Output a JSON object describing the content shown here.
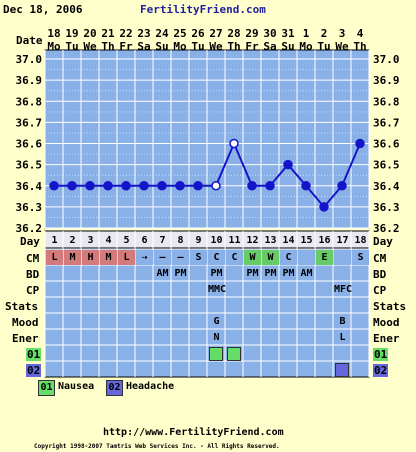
{
  "header": {
    "date": "Dec 18, 2006",
    "site": "FertilityFriend.com"
  },
  "chart_data": {
    "type": "line",
    "title": "",
    "dates": [
      "18",
      "19",
      "20",
      "21",
      "22",
      "23",
      "24",
      "25",
      "26",
      "27",
      "28",
      "29",
      "30",
      "31",
      "1",
      "2",
      "3",
      "4"
    ],
    "weekdays": [
      "Mo",
      "Tu",
      "We",
      "Th",
      "Fr",
      "Sa",
      "Su",
      "Mo",
      "Tu",
      "We",
      "Th",
      "Fr",
      "Sa",
      "Su",
      "Mo",
      "Tu",
      "We",
      "Th"
    ],
    "cycle_days": [
      "1",
      "2",
      "3",
      "4",
      "5",
      "6",
      "7",
      "8",
      "9",
      "10",
      "11",
      "12",
      "13",
      "14",
      "15",
      "16",
      "17",
      "18"
    ],
    "y_ticks": [
      "37.0",
      "36.9",
      "36.8",
      "36.7",
      "36.6",
      "36.5",
      "36.4",
      "36.3",
      "36.2"
    ],
    "ylim": [
      36.2,
      37.0
    ],
    "temperatures": [
      36.4,
      36.4,
      36.4,
      36.4,
      36.4,
      36.4,
      36.4,
      36.4,
      36.4,
      36.4,
      36.6,
      36.4,
      36.4,
      36.5,
      36.4,
      36.3,
      36.4,
      36.6
    ],
    "open_points": [
      10,
      11
    ],
    "grid": true,
    "line_color": "#1414c8"
  },
  "rows": {
    "labels": {
      "date": "Date",
      "day": "Day",
      "cm": "CM",
      "bd": "BD",
      "cp": "CP",
      "stats": "Stats",
      "mood": "Mood",
      "ener": "Ener",
      "s1": "01",
      "s2": "02"
    },
    "cm": [
      "L",
      "M",
      "H",
      "M",
      "L",
      "⇢",
      "–",
      "–",
      "S",
      "C",
      "C",
      "W",
      "W",
      "C",
      "",
      "E",
      "",
      "S"
    ],
    "cm_colors": [
      "#d47a7a",
      "#d47a7a",
      "#d47a7a",
      "#d47a7a",
      "#d47a7a",
      "#8ab0e8",
      "#8ab0e8",
      "#8ab0e8",
      "#8ab0e8",
      "#8ab0e8",
      "#8ab0e8",
      "#66cc66",
      "#66cc66",
      "#8ab0e8",
      "#8ab0e8",
      "#66cc66",
      "#8ab0e8",
      "#8ab0e8"
    ],
    "bd": [
      "",
      "",
      "",
      "",
      "",
      "",
      "AM",
      "PM",
      "",
      "PM",
      "",
      "PM",
      "PM",
      "PM",
      "AM",
      "",
      "",
      ""
    ],
    "cp": [
      "",
      "",
      "",
      "",
      "",
      "",
      "",
      "",
      "",
      "MMC",
      "",
      "",
      "",
      "",
      "",
      "",
      "MFC",
      ""
    ],
    "stats": [
      "",
      "",
      "",
      "",
      "",
      "",
      "",
      "",
      "",
      "",
      "",
      "",
      "",
      "",
      "",
      "",
      "",
      ""
    ],
    "mood": [
      "",
      "",
      "",
      "",
      "",
      "",
      "",
      "",
      "",
      "G",
      "",
      "",
      "",
      "",
      "",
      "",
      "B",
      ""
    ],
    "ener": [
      "",
      "",
      "",
      "",
      "",
      "",
      "",
      "",
      "",
      "N",
      "",
      "",
      "",
      "",
      "",
      "",
      "L",
      ""
    ],
    "s1": [
      false,
      false,
      false,
      false,
      false,
      false,
      false,
      false,
      false,
      true,
      true,
      false,
      false,
      false,
      false,
      false,
      false,
      false
    ],
    "s2": [
      false,
      false,
      false,
      false,
      false,
      false,
      false,
      false,
      false,
      false,
      false,
      false,
      false,
      false,
      false,
      false,
      true,
      false
    ]
  },
  "legend": [
    {
      "num": "01",
      "label": "Nausea",
      "color": "#66dd66"
    },
    {
      "num": "02",
      "label": "Headache",
      "color": "#6666dd"
    }
  ],
  "footer": {
    "url": "http://www.FertilityFriend.com",
    "copyright": "Copyright 1998-2007 Tamtris Web Services Inc. - All Rights Reserved."
  },
  "colors": {
    "background": "#ffffcc",
    "grid_bg": "#8ab0e8",
    "day_row_bg": "#e8e8f0",
    "symptom1": "#66dd66",
    "symptom2": "#6666dd"
  }
}
